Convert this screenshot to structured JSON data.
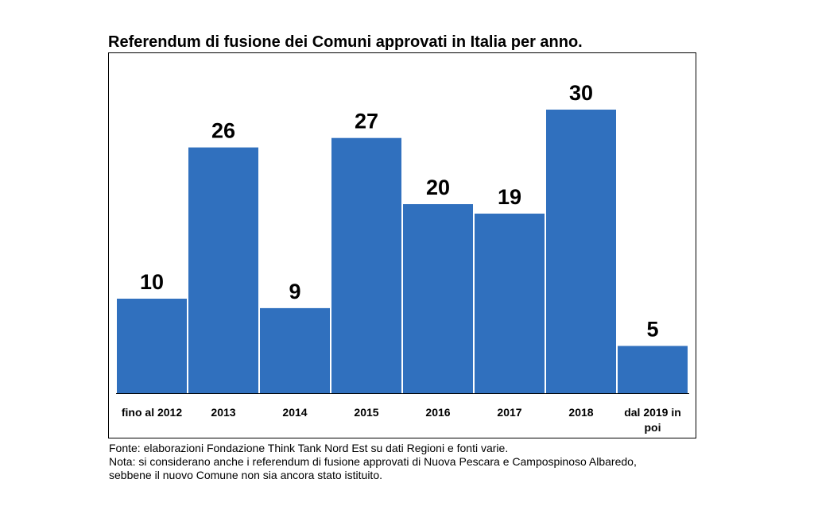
{
  "chart_data": {
    "type": "bar",
    "title": "Referendum di fusione dei Comuni approvati in Italia per anno.",
    "categories": [
      "fino al 2012",
      "2013",
      "2014",
      "2015",
      "2016",
      "2017",
      "2018",
      "dal 2019 in poi"
    ],
    "values": [
      10,
      26,
      9,
      27,
      20,
      19,
      30,
      5
    ],
    "value_labels": [
      "10",
      "26",
      "9",
      "27",
      "20",
      "19",
      "30",
      "5"
    ],
    "xlabel": "",
    "ylabel": "",
    "ylim": [
      0,
      30
    ],
    "grid": false,
    "legend": "none",
    "bar_color": "#3070be",
    "label_color": "#000000"
  },
  "footnotes": {
    "source": "Fonte: elaborazioni Fondazione Think Tank Nord Est su dati Regioni e fonti varie.",
    "note_line1": "Nota: si considerano anche i referendum di fusione approvati di Nuova Pescara e Campospinoso Albaredo,",
    "note_line2": "sebbene il nuovo Comune non sia ancora stato istituito."
  }
}
